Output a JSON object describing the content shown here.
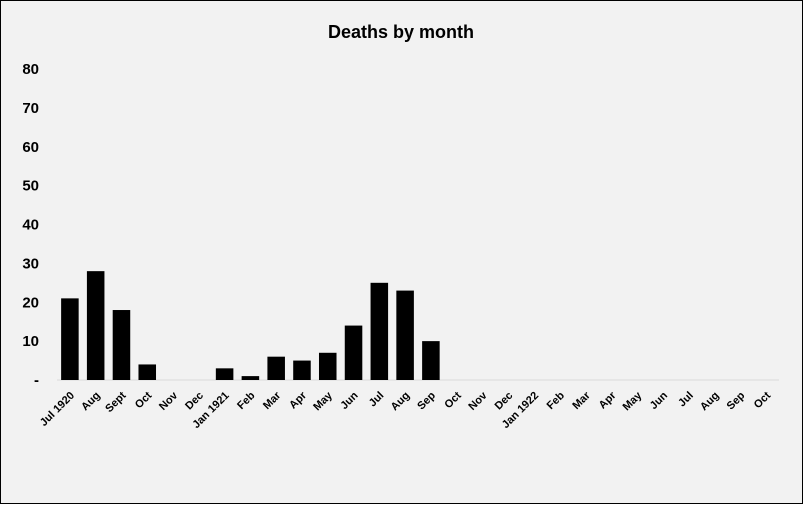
{
  "chart_data": {
    "type": "bar",
    "title": "Deaths by month",
    "xlabel": "",
    "ylabel": "",
    "ylim": [
      0,
      80
    ],
    "yticks": [
      {
        "value": 80,
        "label": "80"
      },
      {
        "value": 70,
        "label": "70"
      },
      {
        "value": 60,
        "label": "60"
      },
      {
        "value": 50,
        "label": "50"
      },
      {
        "value": 40,
        "label": "40"
      },
      {
        "value": 30,
        "label": "30"
      },
      {
        "value": 20,
        "label": "20"
      },
      {
        "value": 10,
        "label": "10"
      },
      {
        "value": 0,
        "label": "-"
      }
    ],
    "grid": false,
    "legend": "none",
    "categories": [
      "Jul 1920",
      "Aug",
      "Sept",
      "Oct",
      "Nov",
      "Dec",
      "Jan 1921",
      "Feb",
      "Mar",
      "Apr",
      "May",
      "Jun",
      "Jul",
      "Aug",
      "Sep",
      "Oct",
      "Nov",
      "Dec",
      "Jan 1922",
      "Feb",
      "Mar",
      "Apr",
      "May",
      "Jun",
      "Jul",
      "Aug",
      "Sep",
      "Oct"
    ],
    "values": [
      21,
      28,
      18,
      4,
      0,
      0,
      3,
      1,
      6,
      5,
      7,
      14,
      25,
      23,
      10,
      0,
      0,
      0,
      0,
      0,
      0,
      0,
      0,
      0,
      0,
      0,
      0,
      0
    ],
    "colors": {
      "bar": "#000000",
      "axis": "#d9d9d9",
      "background": "#f2f2f2"
    }
  }
}
